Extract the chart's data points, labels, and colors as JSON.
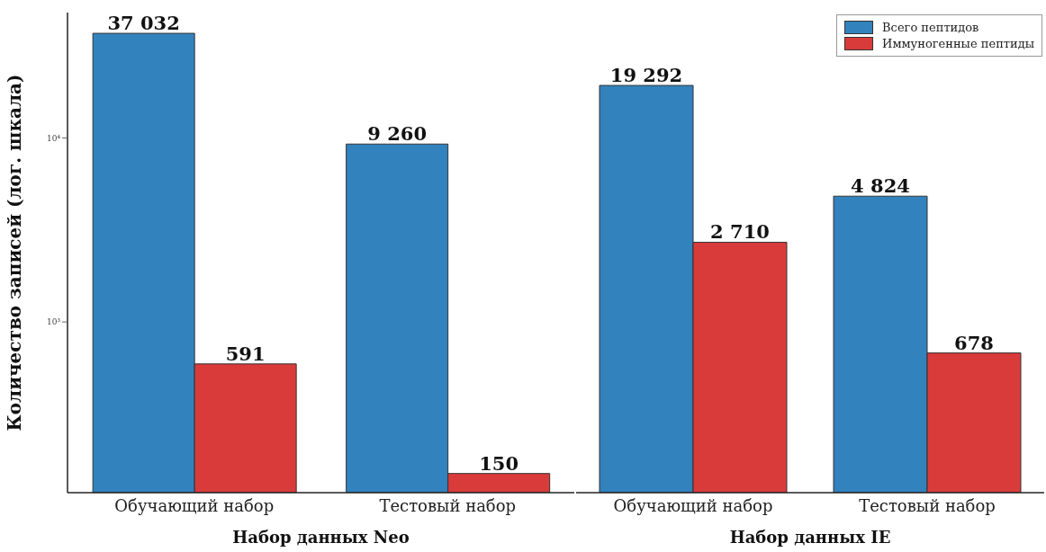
{
  "chart_data": [
    {
      "type": "bar",
      "xlabel": "Набор данных Neo",
      "ylabel": "Количество записей (лог. шкала)",
      "categories": [
        "Обучающий набор",
        "Тестовый набор"
      ],
      "log": "y",
      "ylim": [
        118,
        48000
      ],
      "yticks": [
        {
          "value": 1000,
          "label": "10³"
        },
        {
          "value": 10000,
          "label": "10⁴"
        }
      ],
      "series": [
        {
          "color": "#3282bd",
          "values": [
            37032,
            9260
          ],
          "value_labels": [
            "37 032",
            "9 260"
          ]
        },
        {
          "color": "#d93b3b",
          "values": [
            591,
            150
          ],
          "value_labels": [
            "591",
            "150"
          ]
        }
      ]
    },
    {
      "type": "bar",
      "xlabel": "Набор данных IE",
      "categories": [
        "Обучающий набор",
        "Тестовый набор"
      ],
      "log": "y",
      "ylim": [
        118,
        48000
      ],
      "tick_labels": "x",
      "legend": "top right",
      "series": [
        {
          "name": "Всего пептидов",
          "color": "#3282bd",
          "values": [
            19292,
            4824
          ],
          "value_labels": [
            "19 292",
            "4 824"
          ]
        },
        {
          "name": "Иммуногенные пептиды",
          "color": "#d93b3b",
          "values": [
            2710,
            678
          ],
          "value_labels": [
            "2 710",
            "678"
          ]
        }
      ]
    }
  ]
}
